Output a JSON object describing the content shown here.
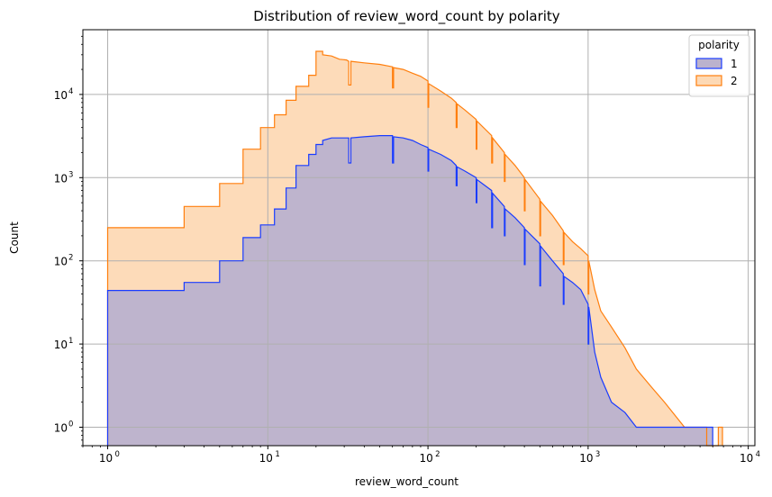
{
  "chart_data": {
    "type": "histogram",
    "title": "Distribution of review_word_count by polarity",
    "xlabel": "review_word_count",
    "ylabel": "Count",
    "x_scale": "log",
    "y_scale": "log",
    "xlim": [
      0.7,
      11000
    ],
    "ylim": [
      0.6,
      60000
    ],
    "x_ticks": [
      {
        "value": 1,
        "base": "10",
        "exp": "0"
      },
      {
        "value": 10,
        "base": "10",
        "exp": "1"
      },
      {
        "value": 100,
        "base": "10",
        "exp": "2"
      },
      {
        "value": 1000,
        "base": "10",
        "exp": "3"
      },
      {
        "value": 10000,
        "base": "10",
        "exp": "4"
      }
    ],
    "y_ticks": [
      {
        "value": 1,
        "base": "10",
        "exp": "0"
      },
      {
        "value": 10,
        "base": "10",
        "exp": "1"
      },
      {
        "value": 100,
        "base": "10",
        "exp": "2"
      },
      {
        "value": 1000,
        "base": "10",
        "exp": "3"
      },
      {
        "value": 10000,
        "base": "10",
        "exp": "4"
      }
    ],
    "grid": true,
    "legend": {
      "title": "polarity",
      "position": "top-right"
    },
    "series": [
      {
        "name": "2",
        "line_color": "#ff7f0e",
        "fill_color": "#fdd9b5",
        "points": [
          [
            1,
            250
          ],
          [
            3,
            250
          ],
          [
            3,
            450
          ],
          [
            5,
            450
          ],
          [
            5,
            850
          ],
          [
            7,
            850
          ],
          [
            7,
            2200
          ],
          [
            9,
            2200
          ],
          [
            9,
            4000
          ],
          [
            11,
            4000
          ],
          [
            11,
            5700
          ],
          [
            13,
            5700
          ],
          [
            13,
            8500
          ],
          [
            15,
            8500
          ],
          [
            15,
            12500
          ],
          [
            18,
            12500
          ],
          [
            18,
            17000
          ],
          [
            20,
            17000
          ],
          [
            20,
            33000
          ],
          [
            22,
            33000
          ],
          [
            22,
            30000
          ],
          [
            25,
            29000
          ],
          [
            28,
            26500
          ],
          [
            31,
            26000
          ],
          [
            32,
            25000
          ],
          [
            32,
            13000
          ],
          [
            33,
            13000
          ],
          [
            33,
            25000
          ],
          [
            40,
            24000
          ],
          [
            50,
            23000
          ],
          [
            60,
            21500
          ],
          [
            60,
            12000
          ],
          [
            61,
            12000
          ],
          [
            61,
            21000
          ],
          [
            70,
            20000
          ],
          [
            80,
            18000
          ],
          [
            90,
            16500
          ],
          [
            100,
            14500
          ],
          [
            100,
            7000
          ],
          [
            101,
            7000
          ],
          [
            101,
            13500
          ],
          [
            120,
            11000
          ],
          [
            140,
            9000
          ],
          [
            150,
            8000
          ],
          [
            150,
            4000
          ],
          [
            152,
            4000
          ],
          [
            152,
            7700
          ],
          [
            170,
            6500
          ],
          [
            200,
            5000
          ],
          [
            200,
            2200
          ],
          [
            202,
            2200
          ],
          [
            202,
            4800
          ],
          [
            250,
            3200
          ],
          [
            250,
            1500
          ],
          [
            253,
            1500
          ],
          [
            253,
            3000
          ],
          [
            300,
            2000
          ],
          [
            300,
            900
          ],
          [
            303,
            900
          ],
          [
            303,
            1900
          ],
          [
            350,
            1400
          ],
          [
            400,
            1000
          ],
          [
            400,
            400
          ],
          [
            404,
            400
          ],
          [
            404,
            950
          ],
          [
            500,
            550
          ],
          [
            500,
            200
          ],
          [
            505,
            200
          ],
          [
            505,
            520
          ],
          [
            600,
            350
          ],
          [
            700,
            230
          ],
          [
            700,
            90
          ],
          [
            707,
            90
          ],
          [
            707,
            220
          ],
          [
            800,
            170
          ],
          [
            900,
            140
          ],
          [
            1000,
            115
          ],
          [
            1000,
            40
          ],
          [
            1010,
            40
          ],
          [
            1010,
            100
          ],
          [
            1100,
            45
          ],
          [
            1200,
            25
          ],
          [
            1400,
            16
          ],
          [
            1700,
            9
          ],
          [
            2000,
            5
          ],
          [
            2500,
            3
          ],
          [
            3000,
            2
          ],
          [
            4000,
            1
          ],
          [
            5500,
            1
          ],
          [
            5500,
            0.6
          ],
          [
            6500,
            0.6
          ],
          [
            6500,
            1
          ],
          [
            6900,
            1
          ],
          [
            6900,
            0.6
          ]
        ]
      },
      {
        "name": "1",
        "line_color": "#1a3cff",
        "fill_color": "#bbb2cd",
        "points": [
          [
            1,
            44
          ],
          [
            3,
            44
          ],
          [
            3,
            55
          ],
          [
            5,
            55
          ],
          [
            5,
            100
          ],
          [
            7,
            100
          ],
          [
            7,
            190
          ],
          [
            9,
            190
          ],
          [
            9,
            270
          ],
          [
            11,
            270
          ],
          [
            11,
            420
          ],
          [
            13,
            420
          ],
          [
            13,
            750
          ],
          [
            15,
            750
          ],
          [
            15,
            1400
          ],
          [
            18,
            1400
          ],
          [
            18,
            1900
          ],
          [
            20,
            1900
          ],
          [
            20,
            2500
          ],
          [
            22,
            2500
          ],
          [
            22,
            2800
          ],
          [
            25,
            3000
          ],
          [
            32,
            3000
          ],
          [
            32,
            1500
          ],
          [
            33,
            1500
          ],
          [
            33,
            3000
          ],
          [
            40,
            3100
          ],
          [
            50,
            3200
          ],
          [
            60,
            3200
          ],
          [
            60,
            1500
          ],
          [
            61,
            1500
          ],
          [
            61,
            3100
          ],
          [
            70,
            3000
          ],
          [
            80,
            2800
          ],
          [
            90,
            2500
          ],
          [
            100,
            2300
          ],
          [
            100,
            1200
          ],
          [
            101,
            1200
          ],
          [
            101,
            2200
          ],
          [
            120,
            1900
          ],
          [
            140,
            1600
          ],
          [
            150,
            1400
          ],
          [
            150,
            800
          ],
          [
            152,
            800
          ],
          [
            152,
            1350
          ],
          [
            170,
            1200
          ],
          [
            200,
            1000
          ],
          [
            200,
            500
          ],
          [
            202,
            500
          ],
          [
            202,
            950
          ],
          [
            250,
            700
          ],
          [
            250,
            250
          ],
          [
            253,
            250
          ],
          [
            253,
            650
          ],
          [
            300,
            450
          ],
          [
            300,
            200
          ],
          [
            303,
            200
          ],
          [
            303,
            420
          ],
          [
            350,
            330
          ],
          [
            400,
            250
          ],
          [
            400,
            90
          ],
          [
            404,
            90
          ],
          [
            404,
            240
          ],
          [
            500,
            160
          ],
          [
            500,
            50
          ],
          [
            505,
            50
          ],
          [
            505,
            150
          ],
          [
            600,
            100
          ],
          [
            700,
            70
          ],
          [
            700,
            30
          ],
          [
            707,
            30
          ],
          [
            707,
            65
          ],
          [
            800,
            55
          ],
          [
            900,
            45
          ],
          [
            1000,
            30
          ],
          [
            1000,
            10
          ],
          [
            1010,
            10
          ],
          [
            1010,
            28
          ],
          [
            1100,
            8
          ],
          [
            1200,
            4
          ],
          [
            1400,
            2
          ],
          [
            1700,
            1.5
          ],
          [
            2000,
            1
          ],
          [
            6000,
            1
          ],
          [
            6000,
            0.6
          ]
        ]
      }
    ]
  }
}
